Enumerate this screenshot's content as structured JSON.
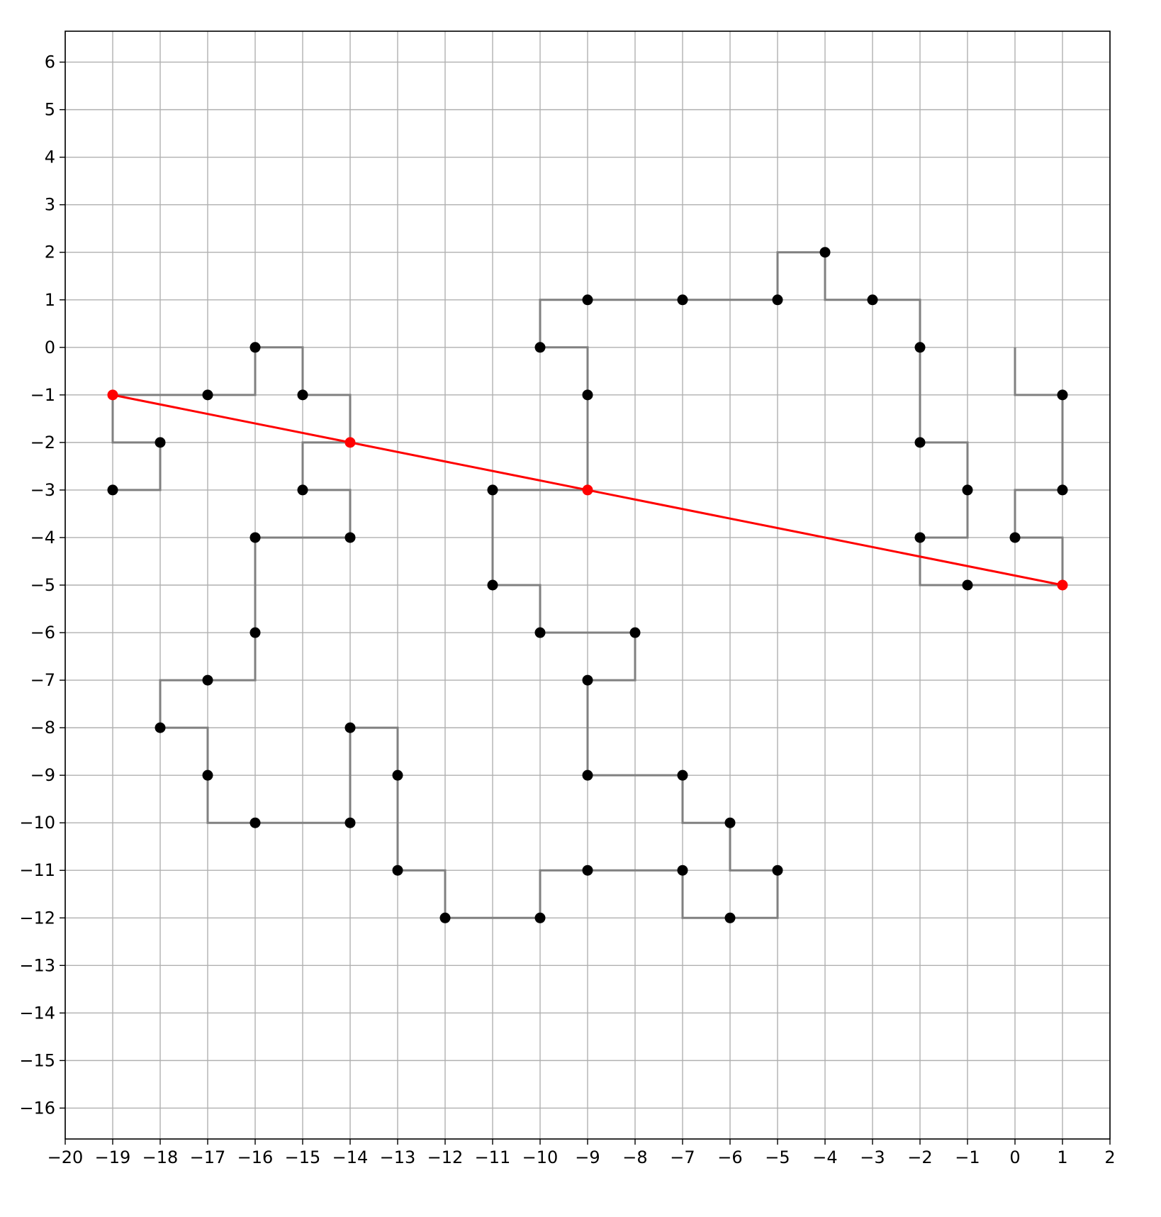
{
  "chart_data": {
    "type": "line",
    "title": "",
    "xlabel": "",
    "ylabel": "",
    "xlim": [
      -20,
      2
    ],
    "ylim": [
      -16.65,
      6.65
    ],
    "grid": true,
    "x_ticks": [
      -20,
      -19,
      -18,
      -17,
      -16,
      -15,
      -14,
      -13,
      -12,
      -11,
      -10,
      -9,
      -8,
      -7,
      -6,
      -5,
      -4,
      -3,
      -2,
      -1,
      0,
      1,
      2
    ],
    "y_ticks": [
      6,
      5,
      4,
      3,
      2,
      1,
      0,
      -1,
      -2,
      -3,
      -4,
      -5,
      -6,
      -7,
      -8,
      -9,
      -10,
      -11,
      -12,
      -13,
      -14,
      -15,
      -16
    ],
    "x_tick_labels": [
      "−20",
      "−19",
      "−18",
      "−17",
      "−16",
      "−15",
      "−14",
      "−13",
      "−12",
      "−11",
      "−10",
      "−9",
      "−8",
      "−7",
      "−6",
      "−5",
      "−4",
      "−3",
      "−2",
      "−1",
      "0",
      "1",
      "2"
    ],
    "y_tick_labels": [
      "6",
      "5",
      "4",
      "3",
      "2",
      "1",
      "0",
      "−1",
      "−2",
      "−3",
      "−4",
      "−5",
      "−6",
      "−7",
      "−8",
      "−9",
      "−10",
      "−11",
      "−12",
      "−13",
      "−14",
      "−15",
      "−16"
    ],
    "series": [
      {
        "color": "#808080",
        "style": "step-path",
        "points": [
          [
            0,
            0
          ],
          [
            0,
            -1
          ],
          [
            1,
            -1
          ],
          [
            1,
            -3
          ],
          [
            0,
            -3
          ],
          [
            0,
            -4
          ],
          [
            1,
            -4
          ],
          [
            1,
            -5
          ],
          [
            -2,
            -5
          ],
          [
            -2,
            -4
          ],
          [
            -1,
            -4
          ],
          [
            -1,
            -2
          ],
          [
            -2,
            -2
          ],
          [
            -2,
            1
          ],
          [
            -4,
            1
          ],
          [
            -4,
            2
          ],
          [
            -5,
            2
          ],
          [
            -5,
            1
          ],
          [
            -10,
            1
          ],
          [
            -10,
            0
          ],
          [
            -9,
            0
          ],
          [
            -9,
            -3
          ],
          [
            -11,
            -3
          ],
          [
            -11,
            -5
          ],
          [
            -10,
            -5
          ],
          [
            -10,
            -6
          ],
          [
            -8,
            -6
          ],
          [
            -8,
            -7
          ],
          [
            -9,
            -7
          ],
          [
            -9,
            -9
          ],
          [
            -7,
            -9
          ],
          [
            -7,
            -10
          ],
          [
            -6,
            -10
          ],
          [
            -6,
            -11
          ],
          [
            -5,
            -11
          ],
          [
            -5,
            -12
          ],
          [
            -7,
            -12
          ],
          [
            -7,
            -11
          ],
          [
            -10,
            -11
          ],
          [
            -10,
            -12
          ],
          [
            -12,
            -12
          ],
          [
            -12,
            -11
          ],
          [
            -13,
            -11
          ],
          [
            -13,
            -8
          ],
          [
            -14,
            -8
          ],
          [
            -14,
            -10
          ],
          [
            -17,
            -10
          ],
          [
            -17,
            -8
          ],
          [
            -18,
            -8
          ],
          [
            -18,
            -7
          ],
          [
            -16,
            -7
          ],
          [
            -16,
            -4
          ],
          [
            -14,
            -4
          ],
          [
            -14,
            -3
          ],
          [
            -15,
            -3
          ],
          [
            -15,
            -2
          ],
          [
            -14,
            -2
          ],
          [
            -14,
            -1
          ],
          [
            -15,
            -1
          ],
          [
            -15,
            0
          ],
          [
            -16,
            0
          ],
          [
            -16,
            -1
          ],
          [
            -19,
            -1
          ],
          [
            -19,
            -2
          ],
          [
            -18,
            -2
          ],
          [
            -18,
            -3
          ],
          [
            -19,
            -3
          ]
        ]
      },
      {
        "color": "#000000",
        "style": "markers",
        "points": [
          [
            1,
            -1
          ],
          [
            1,
            -3
          ],
          [
            0,
            -4
          ],
          [
            -1,
            -5
          ],
          [
            -2,
            -4
          ],
          [
            -1,
            -3
          ],
          [
            -2,
            -2
          ],
          [
            -2,
            0
          ],
          [
            -3,
            1
          ],
          [
            -4,
            2
          ],
          [
            -5,
            1
          ],
          [
            -7,
            1
          ],
          [
            -9,
            1
          ],
          [
            -10,
            0
          ],
          [
            -9,
            -1
          ],
          [
            -11,
            -3
          ],
          [
            -11,
            -5
          ],
          [
            -10,
            -6
          ],
          [
            -8,
            -6
          ],
          [
            -9,
            -7
          ],
          [
            -9,
            -9
          ],
          [
            -7,
            -9
          ],
          [
            -6,
            -10
          ],
          [
            -5,
            -11
          ],
          [
            -6,
            -12
          ],
          [
            -7,
            -11
          ],
          [
            -9,
            -11
          ],
          [
            -10,
            -12
          ],
          [
            -12,
            -12
          ],
          [
            -13,
            -11
          ],
          [
            -13,
            -9
          ],
          [
            -14,
            -8
          ],
          [
            -14,
            -10
          ],
          [
            -16,
            -10
          ],
          [
            -17,
            -9
          ],
          [
            -18,
            -8
          ],
          [
            -17,
            -7
          ],
          [
            -16,
            -6
          ],
          [
            -16,
            -4
          ],
          [
            -14,
            -4
          ],
          [
            -15,
            -3
          ],
          [
            -15,
            -1
          ],
          [
            -16,
            0
          ],
          [
            -17,
            -1
          ],
          [
            -18,
            -2
          ],
          [
            -19,
            -3
          ]
        ]
      },
      {
        "color": "#ff0000",
        "style": "line-with-markers",
        "points": [
          [
            -19,
            -1
          ],
          [
            -14,
            -2
          ],
          [
            -9,
            -3
          ],
          [
            1,
            -5
          ]
        ]
      }
    ]
  }
}
